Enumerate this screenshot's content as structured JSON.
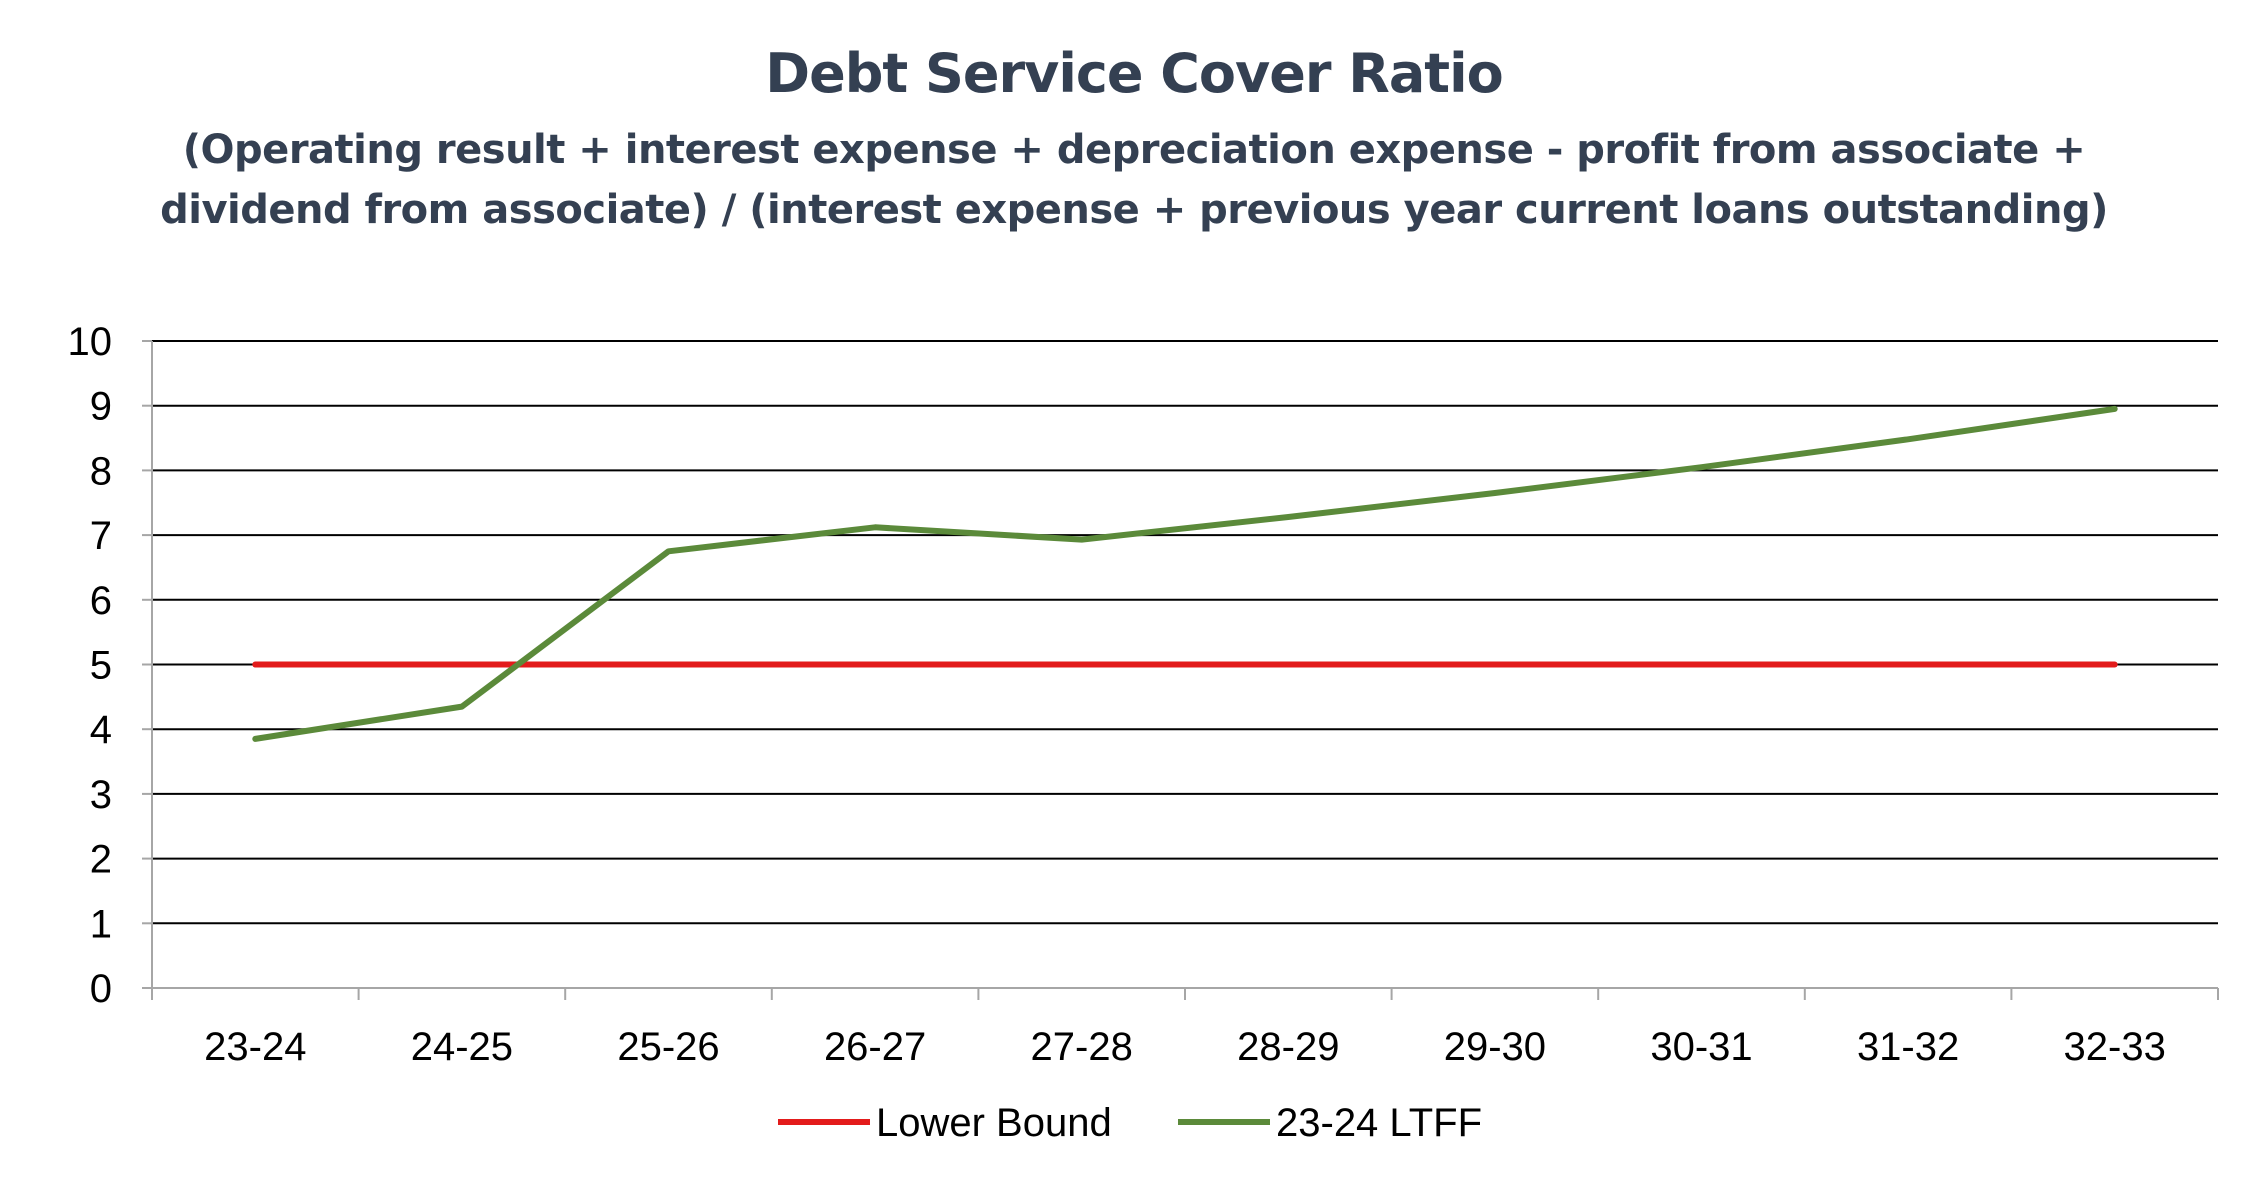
{
  "chart_data": {
    "type": "line",
    "title": "Debt Service Cover Ratio",
    "subtitle_lines": [
      "(Operating result + interest expense + depreciation expense - profit from associate +",
      "dividend from associate) / (interest expense + previous year current loans outstanding)"
    ],
    "categories": [
      "23-24",
      "24-25",
      "25-26",
      "26-27",
      "27-28",
      "28-29",
      "29-30",
      "30-31",
      "31-32",
      "32-33"
    ],
    "ylim": [
      0,
      10
    ],
    "yticks": [
      "0",
      "1",
      "2",
      "3",
      "4",
      "5",
      "6",
      "7",
      "8",
      "9",
      "10"
    ],
    "grid": true,
    "legend_position": "bottom",
    "series": [
      {
        "name": "Lower Bound",
        "color": "#e31b1b",
        "values": [
          5,
          5,
          5,
          5,
          5,
          5,
          5,
          5,
          5,
          5
        ]
      },
      {
        "name": "23-24 LTFF",
        "color": "#5b8a3a",
        "values": [
          3.85,
          4.35,
          6.75,
          7.12,
          6.93,
          7.28,
          7.65,
          8.05,
          8.48,
          8.95
        ]
      }
    ]
  }
}
